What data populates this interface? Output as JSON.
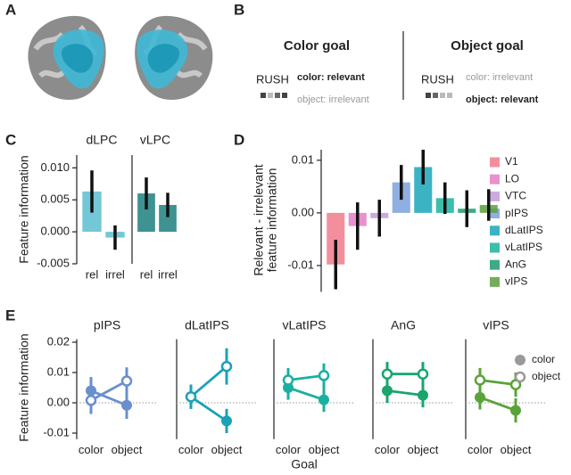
{
  "panel_labels": [
    "A",
    "B",
    "C",
    "D",
    "E"
  ],
  "panel_b": {
    "left": {
      "title": "Color goal",
      "stimulus": "RUSH",
      "relevant": "color: relevant",
      "irrelevant": "object: irrelevant"
    },
    "right": {
      "title": "Object goal",
      "stimulus": "RUSH",
      "irrelevant": "color: irrelevant",
      "relevant": "object: relevant"
    }
  },
  "chart_data": [
    {
      "type": "bar",
      "title": "dLPC",
      "ylabel": "Feature information",
      "categories": [
        "rel",
        "irrel"
      ],
      "values": [
        0.0063,
        -0.0009
      ],
      "errors": [
        0.0033,
        0.0019
      ],
      "color": "#5bbdd0",
      "ylim": [
        -0.005,
        0.012
      ],
      "yticks": [
        {
          "value": -0.005,
          "label": "-0.005"
        },
        {
          "value": 0,
          "label": "0.000"
        },
        {
          "value": 0.005,
          "label": "0.005"
        },
        {
          "value": 0.01,
          "label": "0.010"
        }
      ]
    },
    {
      "type": "bar",
      "title": "vLPC",
      "categories": [
        "rel",
        "irrel"
      ],
      "values": [
        0.006,
        0.0042
      ],
      "errors": [
        0.0025,
        0.0019
      ],
      "color": "#1c7f7e",
      "ylim": [
        -0.005,
        0.012
      ]
    },
    {
      "type": "bar",
      "ylabel": [
        "Relevant - irrelevant",
        "feature information"
      ],
      "categories": [
        "V1",
        "LO",
        "VTC",
        "pIPS",
        "dLatIPS",
        "vLatIPS",
        "AnG",
        "vIPS"
      ],
      "values": [
        -0.0098,
        -0.0025,
        -0.001,
        0.0058,
        0.0087,
        0.0028,
        0.0008,
        0.0015
      ],
      "errors": [
        0.0047,
        0.0045,
        0.0035,
        0.0033,
        0.0033,
        0.003,
        0.0035,
        0.003
      ],
      "colors": [
        "#f17b8c",
        "#e57cc6",
        "#c49bd8",
        "#7ba1dd",
        "#1aa6b8",
        "#19b39b",
        "#1a9e70",
        "#5c9f3c"
      ],
      "ylim": [
        -0.015,
        0.012
      ],
      "yticks": [
        {
          "value": -0.01,
          "label": "-0.01"
        },
        {
          "value": 0,
          "label": "0.00"
        },
        0.01
      ],
      "legend": "right"
    },
    {
      "type": "line",
      "title": "pIPS",
      "ylabel": "Feature information",
      "categories": [
        "color",
        "object"
      ],
      "color": "#6a8fcf",
      "ylim": [
        -0.012,
        0.021
      ],
      "yticks": [
        {
          "value": -0.01,
          "label": "-0.01"
        },
        {
          "value": 0,
          "label": "0.00"
        },
        0.01,
        0.02
      ],
      "zero_line": true,
      "series": [
        {
          "name": "color",
          "marker": "filled",
          "values": [
            0.004,
            -0.0008
          ],
          "errors": [
            0.0045,
            0.0045
          ]
        },
        {
          "name": "object",
          "marker": "open",
          "values": [
            0.0008,
            0.0072
          ],
          "errors": [
            0.0045,
            0.0045
          ]
        }
      ]
    },
    {
      "type": "line",
      "title": "dLatIPS",
      "categories": [
        "color",
        "object"
      ],
      "color": "#1aa3b5",
      "ylim": [
        -0.012,
        0.021
      ],
      "zero_line": true,
      "series": [
        {
          "name": "color",
          "marker": "filled",
          "values": [
            0.002,
            -0.006
          ],
          "errors": [
            0.004,
            0.004
          ]
        },
        {
          "name": "object",
          "marker": "open",
          "values": [
            0.002,
            0.012
          ],
          "errors": [
            0.004,
            0.006
          ]
        }
      ]
    },
    {
      "type": "line",
      "title": "vLatIPS",
      "xlabel": "Goal",
      "categories": [
        "color",
        "object"
      ],
      "color": "#1ab0a0",
      "ylim": [
        -0.012,
        0.021
      ],
      "zero_line": true,
      "series": [
        {
          "name": "color",
          "marker": "filled",
          "values": [
            0.005,
            0.001
          ],
          "errors": [
            0.004,
            0.004
          ]
        },
        {
          "name": "object",
          "marker": "open",
          "values": [
            0.0075,
            0.009
          ],
          "errors": [
            0.004,
            0.004
          ]
        }
      ]
    },
    {
      "type": "line",
      "title": "AnG",
      "categories": [
        "color",
        "object"
      ],
      "color": "#1aa56e",
      "ylim": [
        -0.012,
        0.021
      ],
      "zero_line": true,
      "series": [
        {
          "name": "color",
          "marker": "filled",
          "values": [
            0.004,
            0.0025
          ],
          "errors": [
            0.004,
            0.004
          ]
        },
        {
          "name": "object",
          "marker": "open",
          "values": [
            0.0095,
            0.0095
          ],
          "errors": [
            0.004,
            0.004
          ]
        }
      ]
    },
    {
      "type": "line",
      "title": "vIPS",
      "categories": [
        "color",
        "object"
      ],
      "color": "#5aa33a",
      "ylim": [
        -0.012,
        0.021
      ],
      "zero_line": true,
      "legend": "right",
      "series": [
        {
          "name": "color",
          "marker": "filled",
          "values": [
            0.0018,
            -0.0025
          ],
          "errors": [
            0.004,
            0.004
          ]
        },
        {
          "name": "object",
          "marker": "open",
          "values": [
            0.0075,
            0.006
          ],
          "errors": [
            0.004,
            0.004
          ]
        }
      ]
    }
  ]
}
